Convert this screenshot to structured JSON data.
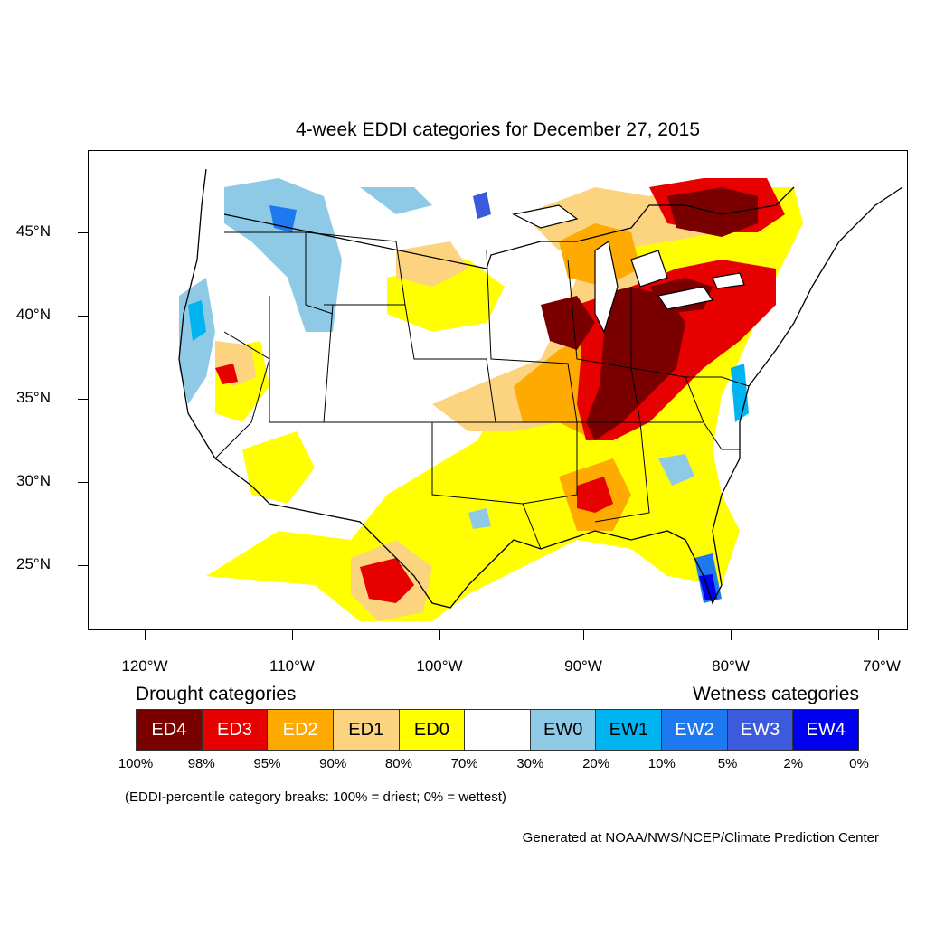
{
  "title": "4-week EDDI categories for December 27, 2015",
  "lat_labels": [
    "45°N",
    "40°N",
    "35°N",
    "30°N",
    "25°N"
  ],
  "lon_labels": [
    "120°W",
    "110°W",
    "100°W",
    "90°W",
    "80°W",
    "70°W"
  ],
  "legend": {
    "drought_heading": "Drought categories",
    "wetness_heading": "Wetness categories",
    "categories": [
      {
        "label": "ED4",
        "color": "#7a0000",
        "text_color": "#ffffff"
      },
      {
        "label": "ED3",
        "color": "#e60000",
        "text_color": "#ffffff"
      },
      {
        "label": "ED2",
        "color": "#ffaa00",
        "text_color": "#ffffff"
      },
      {
        "label": "ED1",
        "color": "#fcd37f",
        "text_color": "#000000"
      },
      {
        "label": "ED0",
        "color": "#ffff00",
        "text_color": "#000000"
      },
      {
        "label": "",
        "color": "#ffffff",
        "text_color": "#000000"
      },
      {
        "label": "EW0",
        "color": "#8ecae6",
        "text_color": "#000000"
      },
      {
        "label": "EW1",
        "color": "#00b4f0",
        "text_color": "#000000"
      },
      {
        "label": "EW2",
        "color": "#1e78f0",
        "text_color": "#ffffff"
      },
      {
        "label": "EW3",
        "color": "#3c5adc",
        "text_color": "#ffffff"
      },
      {
        "label": "EW4",
        "color": "#0000f0",
        "text_color": "#ffffff"
      }
    ],
    "breaks": [
      "100%",
      "98%",
      "95%",
      "90%",
      "80%",
      "70%",
      "30%",
      "20%",
      "10%",
      "5%",
      "2%",
      "0%"
    ]
  },
  "note": "(EDDI-percentile category breaks: 100% = driest; 0% = wettest)",
  "credit": "Generated at NOAA/NWS/NCEP/Climate Prediction Center"
}
